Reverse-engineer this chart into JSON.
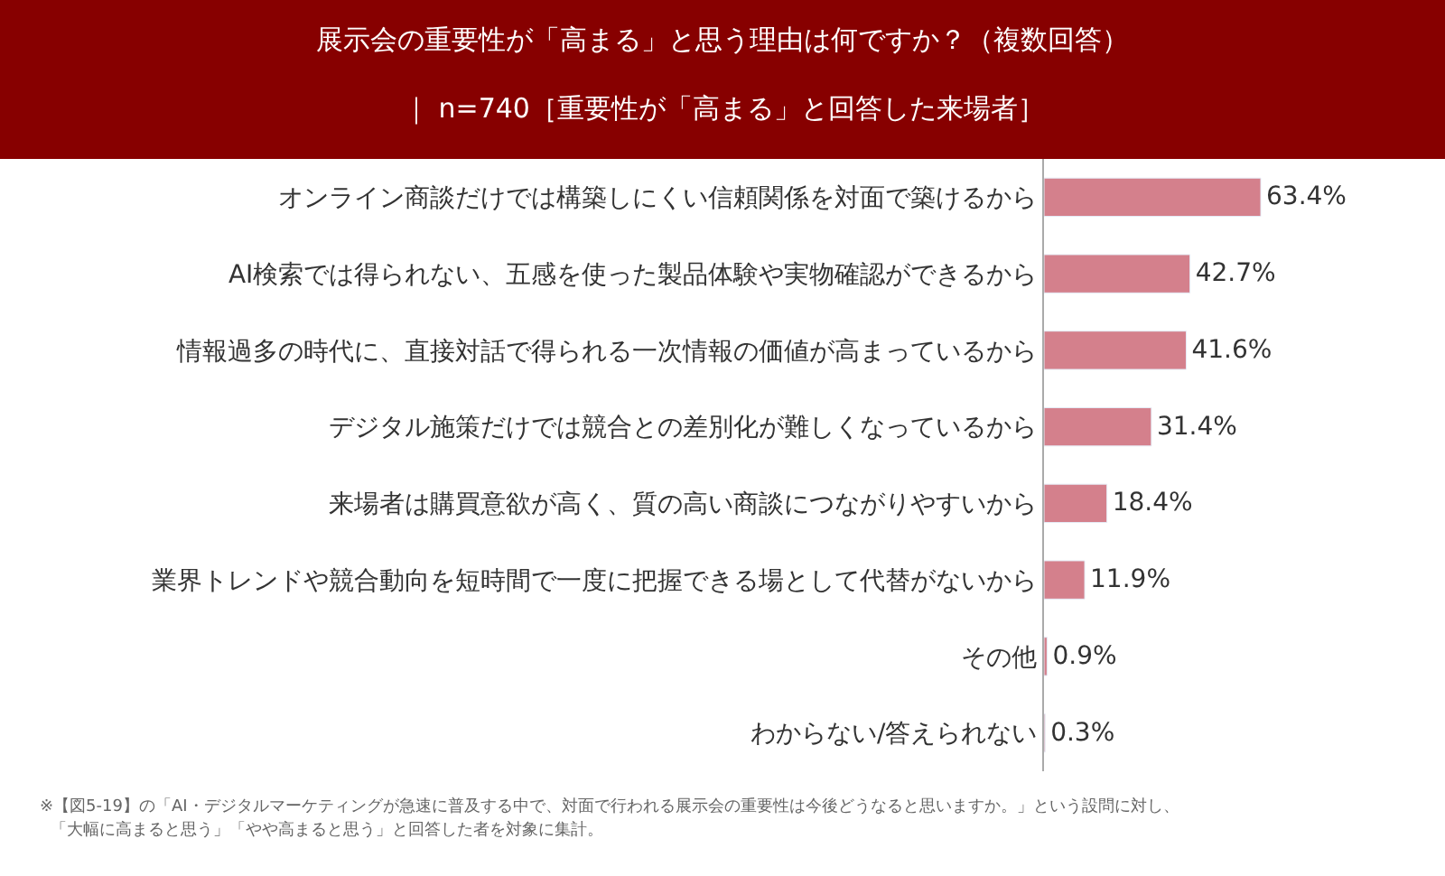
{
  "chart_data": {
    "type": "bar",
    "orientation": "horizontal",
    "title": "展示会の重要性が「高まる」と思う理由は何ですか？（複数回答）",
    "subtitle": "｜ n=740［重要性が「高まる」と回答した来場者］",
    "categories": [
      "オンライン商談だけでは構築しにくい信頼関係を対面で築けるから",
      "AI検索では得られない、五感を使った製品体験や実物確認ができるから",
      "情報過多の時代に、直接対話で得られる一次情報の価値が高まっているから",
      "デジタル施策だけでは競合との差別化が難しくなっているから",
      "来場者は購買意欲が高く、質の高い商談につながりやすいから",
      "業界トレンドや競合動向を短時間で一度に把握できる場として代替がないから",
      "その他",
      "わからない/答えられない"
    ],
    "values": [
      63.4,
      42.7,
      41.6,
      31.4,
      18.4,
      11.9,
      0.9,
      0.3
    ],
    "value_labels": [
      "63.4%",
      "42.7%",
      "41.6%",
      "31.4%",
      "18.4%",
      "11.9%",
      "0.9%",
      "0.3%"
    ],
    "color": "#d4808c",
    "annotations": [
      "※【図5-19】の「AI・デジタルマーケティングが急速に普及する中で、対面で行われる展示会の重要性は今後どうなると思いますか。」という設問に対し、",
      "「大幅に高まると思う」「やや高まると思う」と回答した者を対象に集計。"
    ]
  }
}
